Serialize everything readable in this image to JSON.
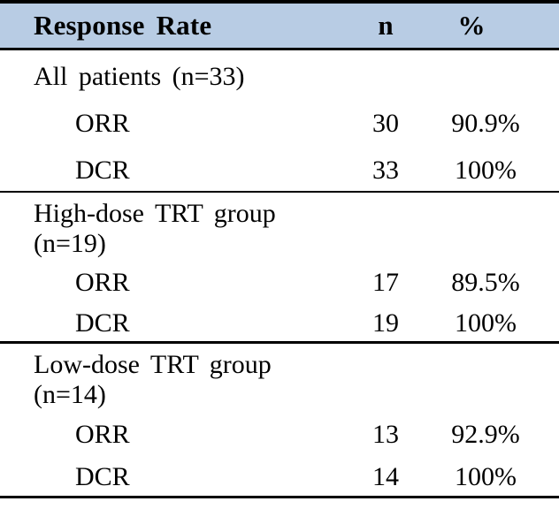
{
  "table": {
    "header": {
      "col_label": "Response Rate",
      "col_n": "n",
      "col_pct": "%"
    },
    "colors": {
      "header_bg": "#b8cce4",
      "rule": "#000000",
      "text": "#000000"
    },
    "sections": [
      {
        "group": "All patients (n=33)",
        "rows": [
          {
            "label": "ORR",
            "n": "30",
            "pct": "90.9%"
          },
          {
            "label": "DCR",
            "n": "33",
            "pct": "100%"
          }
        ]
      },
      {
        "group": "High-dose TRT group (n=19)",
        "rows": [
          {
            "label": "ORR",
            "n": "17",
            "pct": "89.5%"
          },
          {
            "label": "DCR",
            "n": "19",
            "pct": "100%"
          }
        ]
      },
      {
        "group": "Low-dose TRT group (n=14)",
        "rows": [
          {
            "label": "ORR",
            "n": "13",
            "pct": "92.9%"
          },
          {
            "label": "DCR",
            "n": "14",
            "pct": "100%"
          }
        ]
      }
    ]
  }
}
